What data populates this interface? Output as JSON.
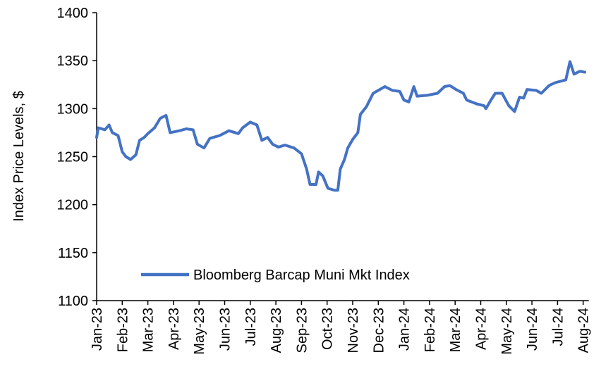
{
  "chart_data": {
    "type": "line",
    "title": "",
    "xlabel": "",
    "ylabel": "Index Price Levels, $",
    "ylim": [
      1100,
      1400
    ],
    "yticks": [
      1100,
      1150,
      1200,
      1250,
      1300,
      1350,
      1400
    ],
    "xticks": [
      "Jan-23",
      "Feb-23",
      "Mar-23",
      "Apr-23",
      "May-23",
      "Jun-23",
      "Jul-23",
      "Aug-23",
      "Sep-23",
      "Oct-23",
      "Nov-23",
      "Dec-23",
      "Jan-24",
      "Feb-24",
      "Mar-24",
      "Apr-24",
      "May-24",
      "Jun-24",
      "Jul-24",
      "Aug-24"
    ],
    "xlim": [
      "2023-01-01",
      "2024-08-05"
    ],
    "grid": false,
    "legend_position": "bottom-center",
    "series": [
      {
        "name": "Bloomberg Barcap Muni Mkt Index",
        "color": "#4472C4",
        "points": [
          [
            "2023-01-01",
            1270
          ],
          [
            "2023-01-03",
            1280
          ],
          [
            "2023-01-11",
            1278
          ],
          [
            "2023-01-16",
            1283
          ],
          [
            "2023-01-20",
            1275
          ],
          [
            "2023-01-27",
            1272
          ],
          [
            "2023-02-01",
            1255
          ],
          [
            "2023-02-05",
            1250
          ],
          [
            "2023-02-10",
            1247
          ],
          [
            "2023-02-16",
            1252
          ],
          [
            "2023-02-20",
            1267
          ],
          [
            "2023-02-25",
            1270
          ],
          [
            "2023-03-01",
            1274
          ],
          [
            "2023-03-09",
            1280
          ],
          [
            "2023-03-16",
            1290
          ],
          [
            "2023-03-23",
            1293
          ],
          [
            "2023-03-28",
            1275
          ],
          [
            "2023-04-08",
            1277
          ],
          [
            "2023-04-16",
            1279
          ],
          [
            "2023-04-24",
            1278
          ],
          [
            "2023-04-29",
            1263
          ],
          [
            "2023-05-07",
            1259
          ],
          [
            "2023-05-14",
            1269
          ],
          [
            "2023-05-26",
            1272
          ],
          [
            "2023-06-06",
            1277
          ],
          [
            "2023-06-17",
            1274
          ],
          [
            "2023-06-22",
            1280
          ],
          [
            "2023-07-01",
            1286
          ],
          [
            "2023-07-09",
            1283
          ],
          [
            "2023-07-15",
            1267
          ],
          [
            "2023-07-22",
            1270
          ],
          [
            "2023-07-28",
            1263
          ],
          [
            "2023-08-04",
            1260
          ],
          [
            "2023-08-12",
            1262
          ],
          [
            "2023-08-23",
            1259
          ],
          [
            "2023-09-01",
            1253
          ],
          [
            "2023-09-07",
            1237
          ],
          [
            "2023-09-11",
            1221
          ],
          [
            "2023-09-18",
            1221
          ],
          [
            "2023-09-21",
            1234
          ],
          [
            "2023-09-26",
            1230
          ],
          [
            "2023-10-02",
            1217
          ],
          [
            "2023-10-10",
            1215
          ],
          [
            "2023-10-14",
            1215
          ],
          [
            "2023-10-17",
            1237
          ],
          [
            "2023-10-22",
            1247
          ],
          [
            "2023-10-26",
            1259
          ],
          [
            "2023-11-01",
            1268
          ],
          [
            "2023-11-07",
            1275
          ],
          [
            "2023-11-10",
            1294
          ],
          [
            "2023-11-17",
            1302
          ],
          [
            "2023-11-25",
            1316
          ],
          [
            "2023-12-09",
            1323
          ],
          [
            "2023-12-18",
            1319
          ],
          [
            "2023-12-27",
            1318
          ],
          [
            "2024-01-01",
            1309
          ],
          [
            "2024-01-07",
            1307
          ],
          [
            "2024-01-13",
            1323
          ],
          [
            "2024-01-17",
            1313
          ],
          [
            "2024-01-30",
            1314
          ],
          [
            "2024-02-10",
            1316
          ],
          [
            "2024-02-18",
            1323
          ],
          [
            "2024-02-24",
            1324
          ],
          [
            "2024-03-02",
            1320
          ],
          [
            "2024-03-11",
            1316
          ],
          [
            "2024-03-15",
            1309
          ],
          [
            "2024-03-27",
            1305
          ],
          [
            "2024-04-05",
            1303
          ],
          [
            "2024-04-07",
            1300
          ],
          [
            "2024-04-13",
            1309
          ],
          [
            "2024-04-18",
            1316
          ],
          [
            "2024-04-26",
            1316
          ],
          [
            "2024-05-04",
            1303
          ],
          [
            "2024-05-11",
            1297
          ],
          [
            "2024-05-17",
            1312
          ],
          [
            "2024-05-22",
            1311
          ],
          [
            "2024-05-26",
            1320
          ],
          [
            "2024-06-06",
            1319
          ],
          [
            "2024-06-12",
            1316
          ],
          [
            "2024-06-21",
            1324
          ],
          [
            "2024-06-28",
            1327
          ],
          [
            "2024-07-11",
            1330
          ],
          [
            "2024-07-16",
            1349
          ],
          [
            "2024-07-21",
            1336
          ],
          [
            "2024-07-28",
            1339
          ],
          [
            "2024-08-03",
            1338
          ]
        ]
      }
    ]
  }
}
